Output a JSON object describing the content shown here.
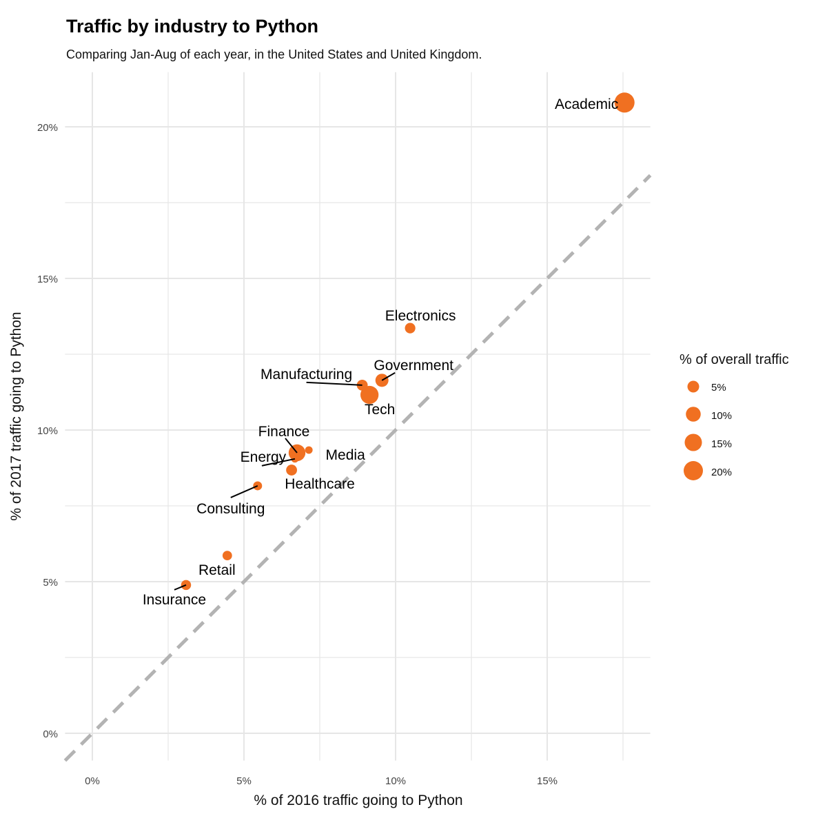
{
  "chart_data": {
    "type": "scatter",
    "title": "Traffic by industry to Python",
    "subtitle": "Comparing Jan-Aug of each year, in the United States and United Kingdom.",
    "xlabel": "% of 2016 traffic going to Python",
    "ylabel": "% of 2017 traffic going to Python",
    "xlim": [
      -0.9,
      18.4
    ],
    "ylim": [
      -0.9,
      21.8
    ],
    "x_ticks": [
      "0%",
      "5%",
      "10%",
      "15%"
    ],
    "y_ticks": [
      "0%",
      "5%",
      "10%",
      "15%",
      "20%"
    ],
    "grid": true,
    "reference_line": "y = x (dashed)",
    "point_color": "#F07021",
    "reference_line_color": "#B3B3B3",
    "size_legend": {
      "title": "% of overall traffic",
      "position": "right",
      "labels": [
        "5%",
        "10%",
        "15%",
        "20%"
      ],
      "values": [
        5,
        10,
        15,
        20
      ]
    },
    "points": [
      {
        "label": "Academic",
        "x": 17.55,
        "y": 20.8,
        "size": 22
      },
      {
        "label": "Electronics",
        "x": 10.48,
        "y": 13.36,
        "size": 3.5
      },
      {
        "label": "Government",
        "x": 9.55,
        "y": 11.64,
        "size": 7
      },
      {
        "label": "Manufacturing",
        "x": 8.9,
        "y": 11.48,
        "size": 4
      },
      {
        "label": "Tech",
        "x": 9.14,
        "y": 11.16,
        "size": 17
      },
      {
        "label": "Finance",
        "x": 6.75,
        "y": 9.25,
        "size": 14
      },
      {
        "label": "Media",
        "x": 7.14,
        "y": 9.34,
        "size": 1
      },
      {
        "label": "Energy",
        "x": 6.68,
        "y": 9.05,
        "size": 1
      },
      {
        "label": "Healthcare",
        "x": 6.57,
        "y": 8.68,
        "size": 4
      },
      {
        "label": "Consulting",
        "x": 5.45,
        "y": 8.16,
        "size": 2
      },
      {
        "label": "Retail",
        "x": 4.45,
        "y": 5.86,
        "size": 2.5
      },
      {
        "label": "Insurance",
        "x": 3.09,
        "y": 4.89,
        "size": 3
      }
    ]
  }
}
